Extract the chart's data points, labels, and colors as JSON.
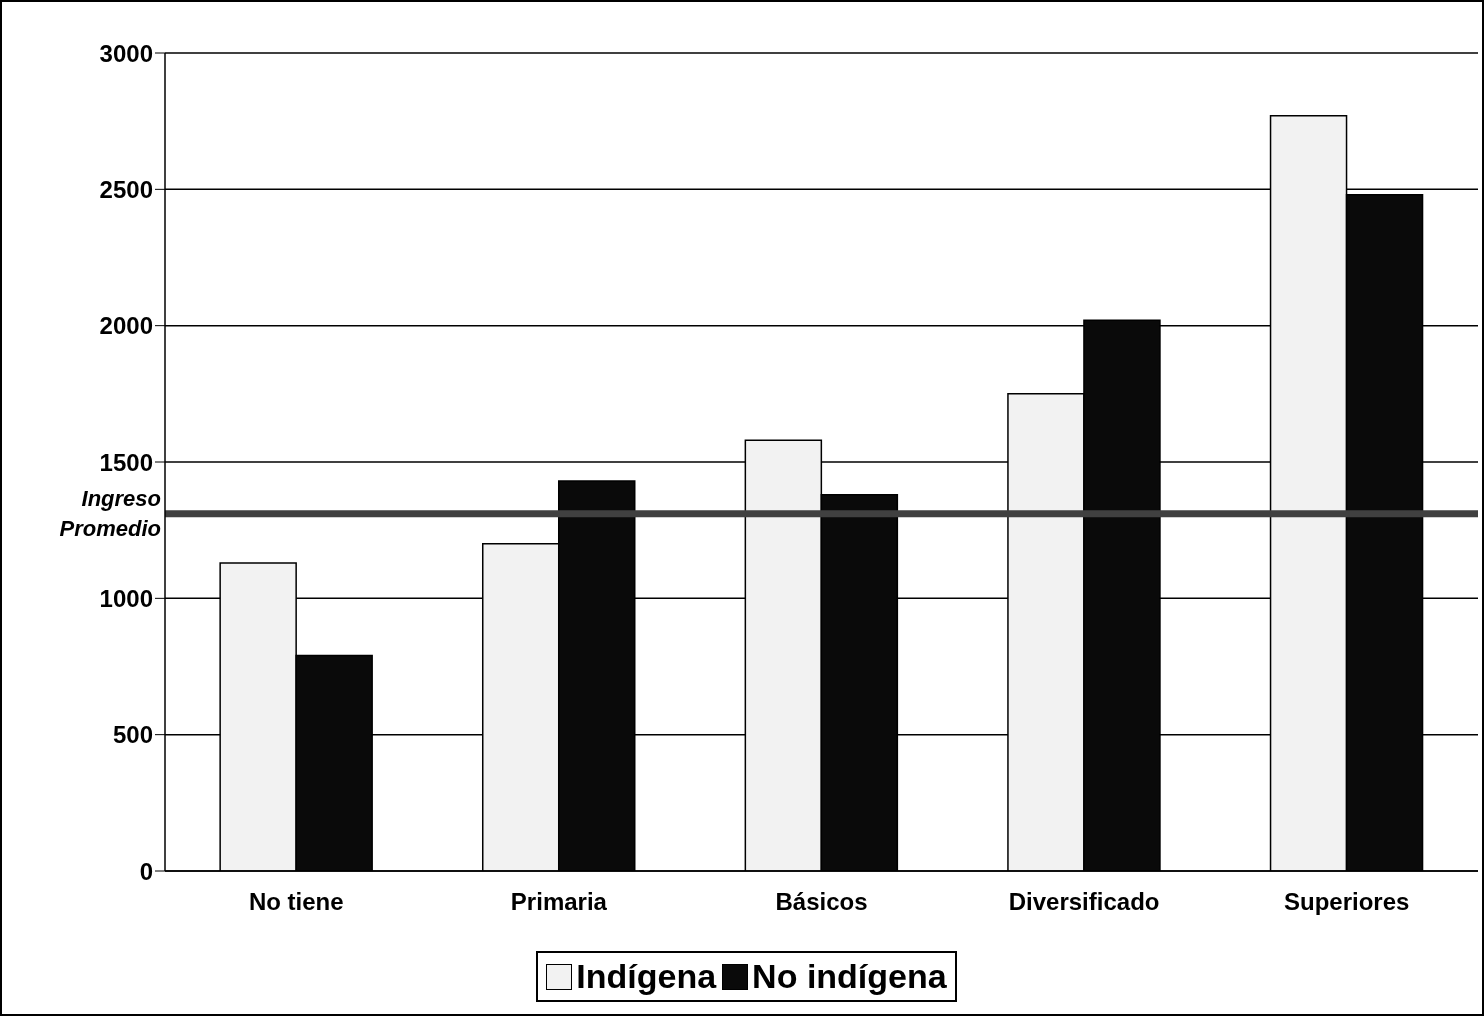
{
  "chart_data": {
    "type": "bar",
    "categories": [
      "No tiene",
      "Primaria",
      "Básicos",
      "Diversificado",
      "Superiores"
    ],
    "series": [
      {
        "name": "Indígena",
        "color": "#f2f2f2",
        "values": [
          1130,
          1200,
          1580,
          1750,
          2770
        ]
      },
      {
        "name": "No indígena",
        "color": "#0a0a0a",
        "values": [
          790,
          1430,
          1380,
          2020,
          2480
        ]
      }
    ],
    "ylim": [
      0,
      3000
    ],
    "yticks": [
      0,
      500,
      1000,
      1500,
      2000,
      2500,
      3000
    ],
    "grid": "y",
    "legend": "bottom",
    "ref_lines": [
      {
        "axis": "y",
        "value": 1310,
        "label": "Ingreso Promedio",
        "color": "#404040"
      }
    ]
  }
}
